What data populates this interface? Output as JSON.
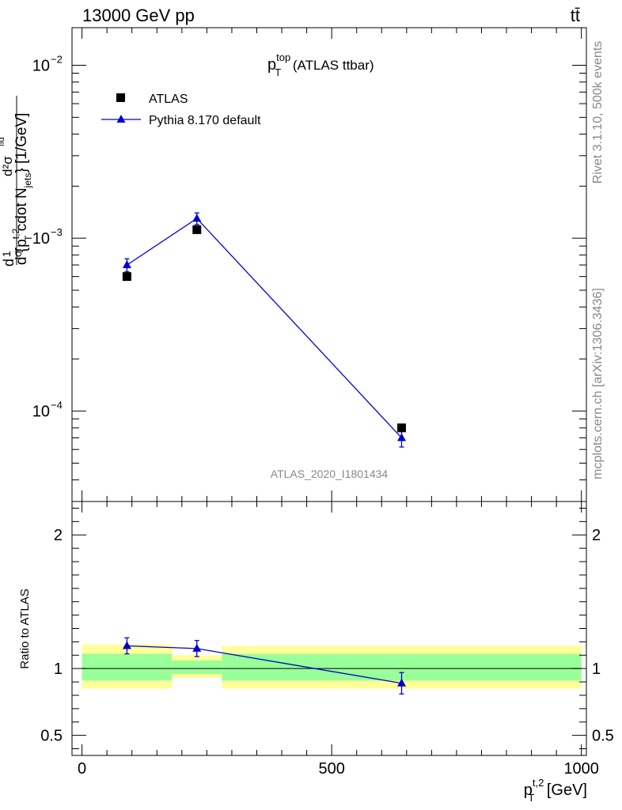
{
  "header": {
    "left": "13000 GeV pp",
    "right": "tt̄"
  },
  "side_texts": {
    "rivet": "Rivet 3.1.10,  500k events",
    "mcplots": "mcplots.cern.ch [arXiv:1306.3436]"
  },
  "chart_data": [
    {
      "type": "scatter",
      "title": {
        "main": "p",
        "sup": "top",
        "sub": "T",
        "suffix": " (ATLAS ttbar)"
      },
      "analysis_label": "ATLAS_2020_I1801434",
      "ylabel": "d²σ / d{p_T^{t,2} cdot N_jets} [1/GeV]",
      "ylabel_parts": {
        "d": "d",
        "one": "1",
        "sigma": "σ",
        "dsig": "d²σ",
        "sup": "fid",
        "cdot": " cdot N",
        "jets": "jets",
        "unit": "} [1/GeV]",
        "dpre": "d",
        "brace": " {p",
        "t2": "t,2",
        "T": "T"
      },
      "yscale": "log",
      "xlim": [
        -20,
        1010
      ],
      "ylim": [
        3e-05,
        0.0165
      ],
      "y_tick_labels": {
        "m2": {
          "base": "10",
          "exp": "−2"
        },
        "m3": {
          "base": "10",
          "exp": "−3"
        },
        "m4": {
          "base": "10",
          "exp": "−4"
        }
      },
      "legend": {
        "position": "top-left",
        "entries": [
          "ATLAS",
          "Pythia 8.170 default"
        ]
      },
      "series": [
        {
          "name": "ATLAS",
          "marker": "square",
          "color": "#000000",
          "x": [
            90,
            230,
            640
          ],
          "y": [
            0.0006,
            0.00112,
            8e-05
          ]
        },
        {
          "name": "Pythia 8.170 default",
          "marker": "triangle",
          "color": "#0000cc",
          "x": [
            90,
            230,
            640
          ],
          "y": [
            0.0007,
            0.0013,
            7e-05
          ],
          "yerr_low": [
            6e-05,
            0.0001,
            8e-06
          ],
          "yerr_high": [
            6e-05,
            0.0001,
            8e-06
          ]
        }
      ]
    },
    {
      "type": "line",
      "ylabel": "Ratio to ATLAS",
      "xlabel": {
        "main": "p",
        "sup": "t,2",
        "sub": "T",
        "suffix": " [GeV]"
      },
      "xlim": [
        -20,
        1010
      ],
      "ylim": [
        0.35,
        2.25
      ],
      "x_tick_labels": [
        "0",
        "500",
        "1000"
      ],
      "y_tick_labels": [
        "0.5",
        "1",
        "2"
      ],
      "uncertainty_bands": [
        {
          "x_from": 0,
          "x_to": 180,
          "yellow": [
            0.85,
            1.18
          ],
          "green": [
            0.91,
            1.11
          ]
        },
        {
          "x_from": 180,
          "x_to": 280,
          "yellow": [
            0.93,
            1.1
          ],
          "green": [
            0.96,
            1.06
          ]
        },
        {
          "x_from": 280,
          "x_to": 1000,
          "yellow": [
            0.85,
            1.17
          ],
          "green": [
            0.91,
            1.11
          ]
        }
      ],
      "series": [
        {
          "name": "Pythia 8.170 default",
          "color": "#0000cc",
          "x": [
            90,
            230,
            640
          ],
          "y": [
            1.17,
            1.15,
            0.89
          ],
          "yerr_low": [
            0.06,
            0.06,
            0.08
          ],
          "yerr_high": [
            0.06,
            0.06,
            0.08
          ]
        }
      ],
      "reference_line": 1.0
    }
  ],
  "colors": {
    "yellow_band": "#ffff99",
    "green_band": "#99ff99",
    "pythia": "#0000cc"
  }
}
